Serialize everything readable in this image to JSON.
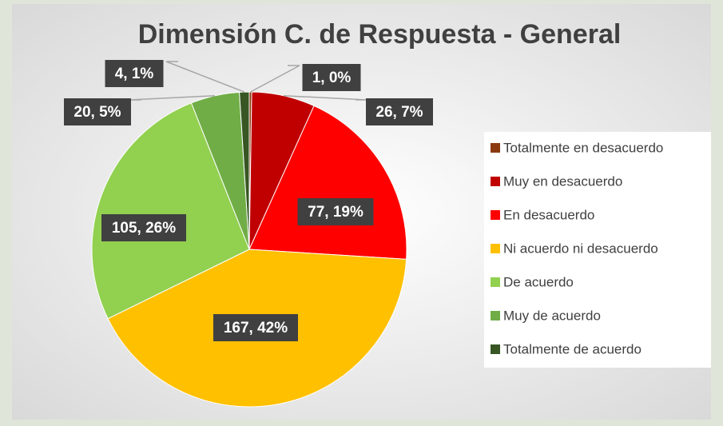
{
  "chart_data": {
    "type": "pie",
    "title": "Dimensión C. de Respuesta - General",
    "categories": [
      "Totalmente  en desacuerdo",
      "Muy en desacuerdo",
      "En desacuerdo",
      "Ni acuerdo ni desacuerdo",
      "De acuerdo",
      "Muy de acuerdo",
      "Totalmente de acuerdo"
    ],
    "values": [
      1,
      26,
      77,
      167,
      105,
      20,
      4
    ],
    "value_labels": [
      "1, 0%",
      "26, 7%",
      "77, 19%",
      "167, 42%",
      "105, 26%",
      "20, 5%",
      "4, 1%"
    ],
    "colors": [
      "#8b3a0f",
      "#c00000",
      "#ff0000",
      "#ffc000",
      "#92d050",
      "#70ad47",
      "#375623"
    ],
    "legend": "right"
  }
}
